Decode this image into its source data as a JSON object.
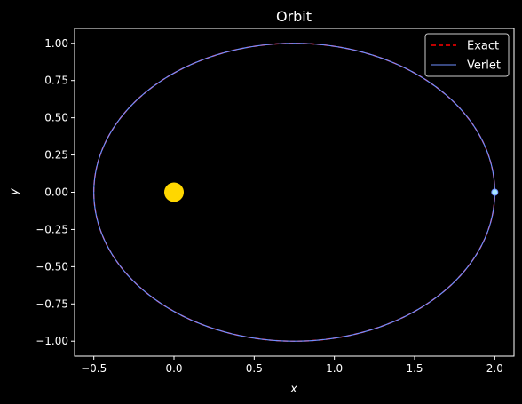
{
  "chart_data": {
    "type": "line",
    "title": "Orbit",
    "xlabel": "x",
    "ylabel": "y",
    "xlim": [
      -0.62,
      2.12
    ],
    "ylim": [
      -1.1,
      1.1
    ],
    "x_ticks": [
      -0.5,
      0.0,
      0.5,
      1.0,
      1.5,
      2.0
    ],
    "x_tick_labels": [
      "−0.5",
      "0.0",
      "0.5",
      "1.0",
      "1.5",
      "2.0"
    ],
    "y_ticks": [
      1.0,
      0.75,
      0.5,
      0.25,
      0.0,
      -0.25,
      -0.5,
      -0.75,
      -1.0
    ],
    "y_tick_labels": [
      "1.00",
      "0.75",
      "0.50",
      "0.25",
      "0.00",
      "−0.25",
      "−0.50",
      "−0.75",
      "−1.00"
    ],
    "grid": false,
    "legend_position": "top-right",
    "orbit": {
      "center_x": 0.75,
      "center_y": 0.0,
      "semi_major": 1.25,
      "semi_minor": 1.0
    },
    "series": [
      {
        "name": "Exact",
        "color": "#ff0000",
        "style": "dashed"
      },
      {
        "name": "Verlet",
        "color": "#6f8fff",
        "style": "solid"
      }
    ],
    "markers": [
      {
        "name": "sun",
        "x": 0.0,
        "y": 0.0,
        "color": "#ffd700"
      },
      {
        "name": "planet",
        "x": 2.0,
        "y": 0.0,
        "color": "#a8e8ff"
      }
    ],
    "colors": {
      "background": "#000000",
      "axes": "#ffffff"
    }
  }
}
